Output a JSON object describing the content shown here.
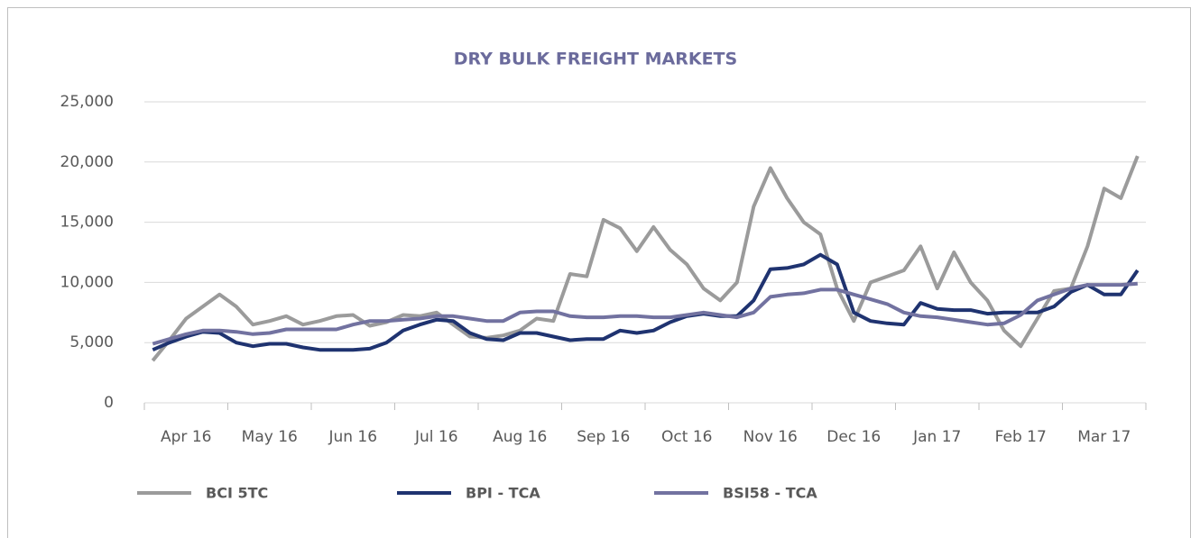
{
  "chart_data": {
    "type": "line",
    "title": "DRY BULK FREIGHT MARKETS",
    "categories": [
      null,
      null,
      "Apr 16",
      null,
      null,
      null,
      null,
      "May 16",
      null,
      null,
      null,
      null,
      "Jun 16",
      null,
      null,
      null,
      null,
      "Jul 16",
      null,
      null,
      null,
      null,
      "Aug 16",
      null,
      null,
      null,
      null,
      "Sep 16",
      null,
      null,
      null,
      null,
      "Oct 16",
      null,
      null,
      null,
      null,
      "Nov 16",
      null,
      null,
      null,
      null,
      "Dec 16",
      null,
      null,
      null,
      null,
      "Jan 17",
      null,
      null,
      null,
      null,
      "Feb 17",
      null,
      null,
      null,
      null,
      "Mar 17",
      null,
      null
    ],
    "series": [
      {
        "name": "BCI 5TC",
        "color": "#9b9b9b",
        "values": [
          3500,
          5200,
          7000,
          8000,
          9000,
          8000,
          6500,
          6800,
          7200,
          6500,
          6800,
          7200,
          7300,
          6400,
          6700,
          7300,
          7200,
          7500,
          6500,
          5500,
          5400,
          5600,
          6000,
          7000,
          6800,
          10700,
          10500,
          15200,
          14500,
          12600,
          14600,
          12700,
          11500,
          9500,
          8500,
          10000,
          16300,
          19500,
          17000,
          15000,
          14000,
          9500,
          6800,
          10000,
          10500,
          11000,
          13000,
          9500,
          12500,
          10000,
          8500,
          6000,
          4700,
          7000,
          9300,
          9500,
          13000,
          17800,
          17000,
          20500
        ]
      },
      {
        "name": "BPI - TCA",
        "color": "#1f3370",
        "values": [
          4400,
          5000,
          5500,
          5900,
          5800,
          5000,
          4700,
          4900,
          4900,
          4600,
          4400,
          4400,
          4400,
          4500,
          5000,
          6000,
          6500,
          6900,
          6800,
          5800,
          5300,
          5200,
          5800,
          5800,
          5500,
          5200,
          5300,
          5300,
          6000,
          5800,
          6000,
          6700,
          7200,
          7400,
          7200,
          7200,
          8500,
          11100,
          11200,
          11500,
          12300,
          11500,
          7500,
          6800,
          6600,
          6500,
          8300,
          7800,
          7700,
          7700,
          7400,
          7500,
          7500,
          7500,
          8000,
          9200,
          9800,
          9000,
          9000,
          11000
        ]
      },
      {
        "name": "BSI58 - TCA",
        "color": "#7272a0",
        "values": [
          4900,
          5300,
          5700,
          6000,
          6000,
          5900,
          5700,
          5800,
          6100,
          6100,
          6100,
          6100,
          6500,
          6800,
          6800,
          6900,
          7000,
          7200,
          7200,
          7000,
          6800,
          6800,
          7500,
          7600,
          7600,
          7200,
          7100,
          7100,
          7200,
          7200,
          7100,
          7100,
          7300,
          7500,
          7300,
          7100,
          7500,
          8800,
          9000,
          9100,
          9400,
          9400,
          9000,
          8600,
          8200,
          7500,
          7200,
          7100,
          6900,
          6700,
          6500,
          6600,
          7300,
          8500,
          9000,
          9500,
          9800,
          9800,
          9800,
          9900
        ]
      }
    ],
    "ylim": [
      0,
      25000
    ],
    "yticks": [
      0,
      {
        "value": 5000,
        "label": "5,000"
      },
      {
        "value": 10000,
        "label": "10,000"
      },
      {
        "value": 15000,
        "label": "15,000"
      },
      {
        "value": 20000,
        "label": "20,000"
      },
      {
        "value": 25000,
        "label": "25,000"
      }
    ],
    "grid": true,
    "legend": "bottom"
  }
}
